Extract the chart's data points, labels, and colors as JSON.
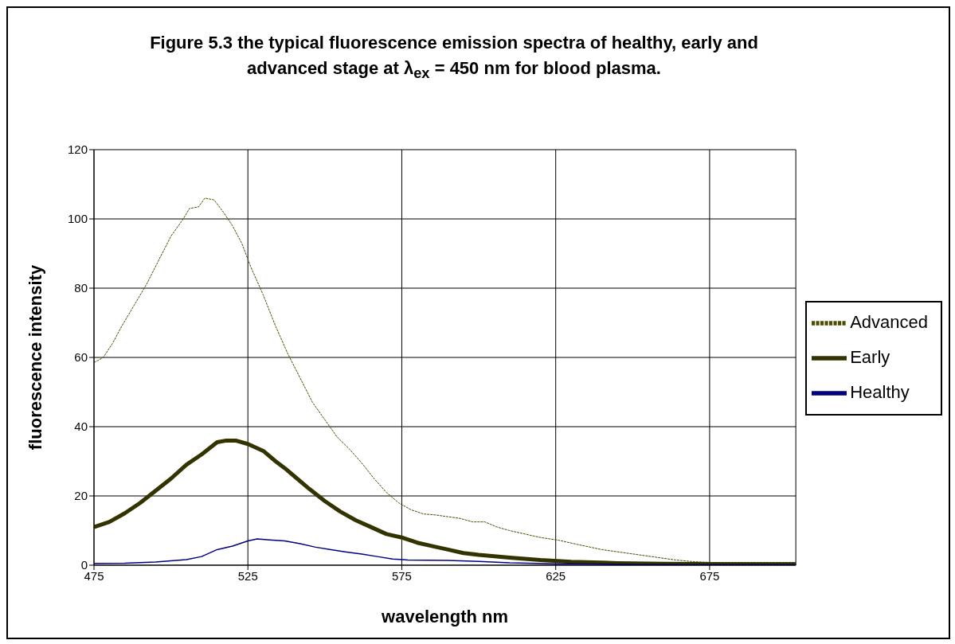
{
  "chart_data": {
    "type": "line",
    "title": "Figure 5.3 the typical fluorescence emission spectra of healthy, early and advanced stage at λ$_{ex}$ = 450 nm for blood plasma.",
    "xlabel": "wavelength nm",
    "ylabel": "fluorescence intensity",
    "xlim": [
      475,
      703
    ],
    "xticks": [
      475,
      525,
      575,
      625,
      675
    ],
    "ylim": [
      0,
      120
    ],
    "yticks": [
      0,
      20,
      40,
      60,
      80,
      100,
      120
    ],
    "grid": true,
    "legend": "right",
    "marker": "none",
    "series": [
      {
        "name": "Advanced",
        "color": "#4d4d00",
        "line_style": "dashed",
        "x": [
          475,
          478,
          481,
          484,
          488,
          492,
          496,
          500,
          504,
          506,
          509,
          511,
          514,
          517,
          520,
          523,
          526,
          530,
          534,
          538,
          542,
          546,
          550,
          554,
          558,
          562,
          566,
          570,
          574,
          578,
          582,
          586,
          590,
          594,
          598,
          602,
          606,
          610,
          614,
          620,
          626,
          632,
          640,
          648,
          656,
          664,
          670,
          676,
          690,
          703
        ],
        "values": [
          58.5,
          60,
          64,
          69,
          75,
          81,
          88,
          95,
          100,
          103,
          103.5,
          106,
          105.5,
          102,
          98,
          93,
          86,
          78,
          69,
          61,
          54,
          47,
          42,
          37,
          33.5,
          29.5,
          25,
          21,
          18,
          16,
          14.8,
          14.5,
          14,
          13.5,
          12.5,
          12.5,
          11,
          10,
          9.2,
          8,
          7.2,
          6,
          4.5,
          3.5,
          2.5,
          1.5,
          1,
          0.8,
          0.8,
          0.8
        ]
      },
      {
        "name": "Early",
        "color": "#333300",
        "line_style": "solid",
        "x": [
          475,
          480,
          485,
          490,
          495,
          500,
          505,
          510,
          515,
          518,
          521,
          525,
          530,
          534,
          537,
          541,
          545,
          550,
          555,
          560,
          565,
          570,
          575,
          580,
          585,
          590,
          595,
          600,
          610,
          620,
          630,
          645,
          660,
          680,
          703
        ],
        "values": [
          11,
          12.5,
          15,
          18,
          21.5,
          25,
          29,
          32,
          35.5,
          36,
          36,
          35,
          33,
          30,
          28,
          25,
          22,
          18.5,
          15.5,
          13,
          11,
          9,
          8,
          6.5,
          5.5,
          4.5,
          3.5,
          3,
          2.2,
          1.5,
          1,
          0.6,
          0.4,
          0.3,
          0.3
        ]
      },
      {
        "name": "Healthy",
        "color": "#000080",
        "line_style": "solid",
        "x": [
          475,
          485,
          495,
          505,
          510,
          515,
          520,
          525,
          528,
          532,
          537,
          542,
          547,
          552,
          557,
          562,
          567,
          572,
          577,
          590,
          600,
          610,
          625,
          650,
          703
        ],
        "values": [
          0.5,
          0.6,
          0.9,
          1.6,
          2.5,
          4.5,
          5.5,
          7,
          7.6,
          7.3,
          7,
          6.2,
          5.2,
          4.5,
          3.8,
          3.2,
          2.5,
          1.8,
          1.5,
          1.4,
          1.1,
          0.7,
          0.4,
          0.2,
          0.1
        ]
      }
    ]
  }
}
